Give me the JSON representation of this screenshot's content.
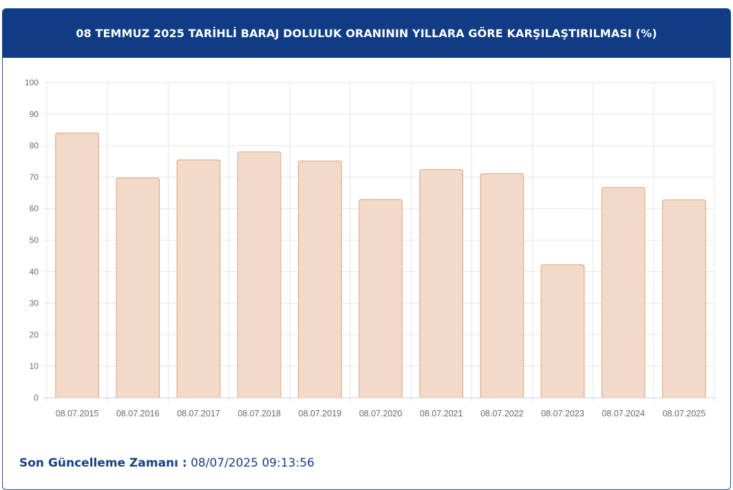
{
  "header": {
    "title": "08 TEMMUZ 2025 TARİHLİ BARAJ DOLULUK ORANININ YILLARA GÖRE KARŞILAŞTIRILMASI (%)"
  },
  "footer": {
    "label": "Son Güncelleme Zamanı :",
    "value": " 08/07/2025 09:13:56"
  },
  "colors": {
    "header_bg": "#103c86",
    "bar_fill": "#f3d9c8",
    "bar_stroke": "#d9a27f",
    "grid": "#e4e4e4",
    "tick_text": "#666666",
    "footer_text": "#163f85"
  },
  "chart_data": {
    "type": "bar",
    "categories": [
      "08.07.2015",
      "08.07.2016",
      "08.07.2017",
      "08.07.2018",
      "08.07.2019",
      "08.07.2020",
      "08.07.2021",
      "08.07.2022",
      "08.07.2023",
      "08.07.2024",
      "08.07.2025"
    ],
    "values": [
      84.0,
      69.7,
      75.5,
      78.0,
      75.1,
      62.9,
      72.4,
      71.1,
      42.2,
      66.7,
      62.8
    ],
    "ylim": [
      0,
      100
    ],
    "yticks": [
      0,
      10,
      20,
      30,
      40,
      50,
      60,
      70,
      80,
      90,
      100
    ],
    "grid": true,
    "legend": "none"
  }
}
